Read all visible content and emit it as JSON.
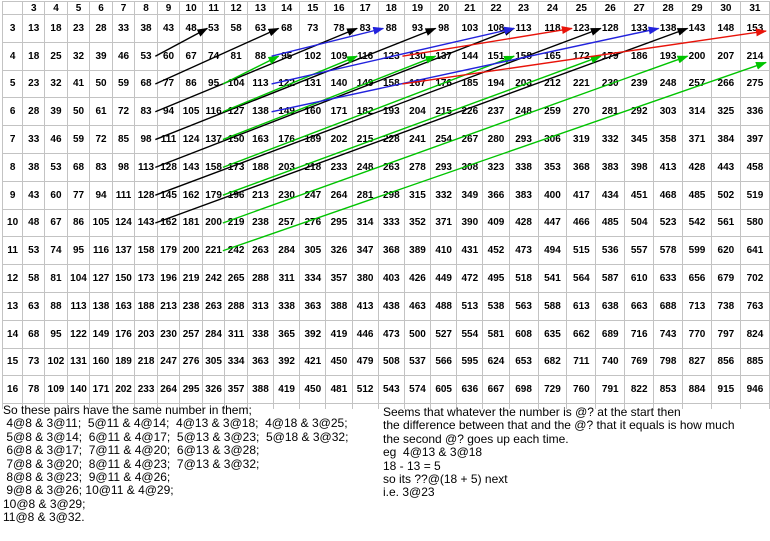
{
  "table": {
    "col_headers": [
      3,
      4,
      5,
      6,
      7,
      8,
      9,
      10,
      11,
      12,
      13,
      14,
      15,
      16,
      17,
      18,
      19,
      20,
      21,
      22,
      23,
      24,
      25,
      26,
      27,
      28,
      29,
      30,
      31
    ],
    "row_headers": [
      3,
      4,
      5,
      6,
      7,
      8,
      9,
      10,
      11,
      12,
      13,
      14,
      15,
      16
    ],
    "values": [
      [
        13,
        18,
        23,
        28,
        33,
        38,
        43,
        48,
        53,
        58,
        63,
        68,
        73,
        78,
        83,
        88,
        93,
        98,
        103,
        108,
        113,
        118,
        123,
        128,
        133,
        138,
        143,
        148,
        153
      ],
      [
        18,
        25,
        32,
        39,
        46,
        53,
        60,
        67,
        74,
        81,
        88,
        95,
        102,
        109,
        116,
        123,
        130,
        137,
        144,
        151,
        158,
        165,
        172,
        179,
        186,
        193,
        200,
        207,
        214
      ],
      [
        23,
        32,
        41,
        50,
        59,
        68,
        77,
        86,
        95,
        104,
        113,
        122,
        131,
        140,
        149,
        158,
        167,
        176,
        185,
        194,
        203,
        212,
        221,
        230,
        239,
        248,
        257,
        266,
        275
      ],
      [
        28,
        39,
        50,
        61,
        72,
        83,
        94,
        105,
        116,
        127,
        138,
        149,
        160,
        171,
        182,
        193,
        204,
        215,
        226,
        237,
        248,
        259,
        270,
        281,
        292,
        303,
        314,
        325,
        336
      ],
      [
        33,
        46,
        59,
        72,
        85,
        98,
        111,
        124,
        137,
        150,
        163,
        176,
        189,
        202,
        215,
        228,
        241,
        254,
        267,
        280,
        293,
        306,
        319,
        332,
        345,
        358,
        371,
        384,
        397
      ],
      [
        38,
        53,
        68,
        83,
        98,
        113,
        128,
        143,
        158,
        173,
        188,
        203,
        218,
        233,
        248,
        263,
        278,
        293,
        308,
        323,
        338,
        353,
        368,
        383,
        398,
        413,
        428,
        443,
        458
      ],
      [
        43,
        60,
        77,
        94,
        111,
        128,
        145,
        162,
        179,
        196,
        213,
        230,
        247,
        264,
        281,
        298,
        315,
        332,
        349,
        366,
        383,
        400,
        417,
        434,
        451,
        468,
        485,
        502,
        519
      ],
      [
        48,
        67,
        86,
        105,
        124,
        143,
        162,
        181,
        200,
        219,
        238,
        257,
        276,
        295,
        314,
        333,
        352,
        371,
        390,
        409,
        428,
        447,
        466,
        485,
        504,
        523,
        542,
        561,
        580
      ],
      [
        53,
        74,
        95,
        116,
        137,
        158,
        179,
        200,
        221,
        242,
        263,
        284,
        305,
        326,
        347,
        368,
        389,
        410,
        431,
        452,
        473,
        494,
        515,
        536,
        557,
        578,
        599,
        620,
        641
      ],
      [
        58,
        81,
        104,
        127,
        150,
        173,
        196,
        219,
        242,
        265,
        288,
        311,
        334,
        357,
        380,
        403,
        426,
        449,
        472,
        495,
        518,
        541,
        564,
        587,
        610,
        633,
        656,
        679,
        702
      ],
      [
        63,
        88,
        113,
        138,
        163,
        188,
        213,
        238,
        263,
        288,
        313,
        338,
        363,
        388,
        413,
        438,
        463,
        488,
        513,
        538,
        563,
        588,
        613,
        638,
        663,
        688,
        713,
        738,
        763
      ],
      [
        68,
        95,
        122,
        149,
        176,
        203,
        230,
        257,
        284,
        311,
        338,
        365,
        392,
        419,
        446,
        473,
        500,
        527,
        554,
        581,
        608,
        635,
        662,
        689,
        716,
        743,
        770,
        797,
        824
      ],
      [
        73,
        102,
        131,
        160,
        189,
        218,
        247,
        276,
        305,
        334,
        363,
        392,
        421,
        450,
        479,
        508,
        537,
        566,
        595,
        624,
        653,
        682,
        711,
        740,
        769,
        798,
        827,
        856,
        885
      ],
      [
        78,
        109,
        140,
        171,
        202,
        233,
        264,
        295,
        326,
        357,
        388,
        419,
        450,
        481,
        512,
        543,
        574,
        605,
        636,
        667,
        698,
        729,
        760,
        791,
        822,
        853,
        884,
        915,
        946
      ]
    ]
  },
  "arrows": [
    {
      "color": "black",
      "label": "4@8 to 3@11",
      "from": {
        "row": 4,
        "col": 8
      },
      "to": {
        "row": 3,
        "col": 11
      }
    },
    {
      "color": "black",
      "label": "5@8 to 3@14",
      "from": {
        "row": 5,
        "col": 8
      },
      "to": {
        "row": 3,
        "col": 14
      }
    },
    {
      "color": "black",
      "label": "6@8 to 3@17",
      "from": {
        "row": 6,
        "col": 8
      },
      "to": {
        "row": 3,
        "col": 17
      }
    },
    {
      "color": "black",
      "label": "7@8 to 3@20",
      "from": {
        "row": 7,
        "col": 8
      },
      "to": {
        "row": 3,
        "col": 20
      }
    },
    {
      "color": "black",
      "label": "8@8 to 3@23",
      "from": {
        "row": 8,
        "col": 8
      },
      "to": {
        "row": 3,
        "col": 23
      }
    },
    {
      "color": "black",
      "label": "9@8 to 3@26",
      "from": {
        "row": 9,
        "col": 8
      },
      "to": {
        "row": 3,
        "col": 26
      }
    },
    {
      "color": "black",
      "label": "10@8 to 3@29",
      "from": {
        "row": 10,
        "col": 8
      },
      "to": {
        "row": 3,
        "col": 29
      }
    },
    {
      "color": "green",
      "label": "5@11 to 4@14",
      "from": {
        "row": 5,
        "col": 11
      },
      "to": {
        "row": 4,
        "col": 14
      }
    },
    {
      "color": "green",
      "label": "6@11 to 4@17",
      "from": {
        "row": 6,
        "col": 11
      },
      "to": {
        "row": 4,
        "col": 17
      }
    },
    {
      "color": "green",
      "label": "7@11 to 4@20",
      "from": {
        "row": 7,
        "col": 11
      },
      "to": {
        "row": 4,
        "col": 20
      }
    },
    {
      "color": "green",
      "label": "8@11 to 4@23",
      "from": {
        "row": 8,
        "col": 11
      },
      "to": {
        "row": 4,
        "col": 23
      }
    },
    {
      "color": "green",
      "label": "9@11 to 4@26",
      "from": {
        "row": 9,
        "col": 11
      },
      "to": {
        "row": 4,
        "col": 26
      }
    },
    {
      "color": "green",
      "label": "10@11 to 4@29",
      "from": {
        "row": 10,
        "col": 11
      },
      "to": {
        "row": 4,
        "col": 29
      }
    },
    {
      "color": "green",
      "label": "11@11 off table toward 4@32",
      "from": {
        "row": 11,
        "col": 11
      },
      "to": {
        "row": 4,
        "col": 32
      }
    },
    {
      "color": "blue",
      "label": "4@13 to 3@18",
      "from": {
        "row": 4,
        "col": 13
      },
      "to": {
        "row": 3,
        "col": 18
      }
    },
    {
      "color": "blue",
      "label": "5@13 to 3@23",
      "from": {
        "row": 5,
        "col": 13
      },
      "to": {
        "row": 3,
        "col": 23
      }
    },
    {
      "color": "blue",
      "label": "6@13 to 3@28",
      "from": {
        "row": 6,
        "col": 13
      },
      "to": {
        "row": 3,
        "col": 28
      }
    },
    {
      "color": "red",
      "label": "4@18 to 3@25",
      "from": {
        "row": 4,
        "col": 18
      },
      "to": {
        "row": 3,
        "col": 25
      }
    },
    {
      "color": "red",
      "label": "5@18 off table toward 3@32",
      "from": {
        "row": 5,
        "col": 18
      },
      "to": {
        "row": 3,
        "col": 32
      }
    }
  ],
  "colors": {
    "black": "#000000",
    "green": "#00c400",
    "blue": "#2222dd",
    "red": "#e81309",
    "grid": "#c3c3c3",
    "text": "#000000"
  },
  "notes_left": {
    "lines": [
      "So these pairs have the same number in them;",
      " 4@8 & 3@11;  5@11 & 4@14;  4@13 & 3@18;  4@18 & 3@25;",
      " 5@8 & 3@14;  6@11 & 4@17;  5@13 & 3@23;  5@18 & 3@32;",
      " 6@8 & 3@17;  7@11 & 4@20;  6@13 & 3@28;",
      " 7@8 & 3@20;  8@11 & 4@23;  7@13 & 3@32;",
      " 8@8 & 3@23;  9@11 & 4@26;",
      " 9@8 & 3@26; 10@11 & 4@29;",
      "10@8 & 3@29;",
      "11@8 & 3@32."
    ]
  },
  "notes_right": {
    "lines": [
      "Seems that whatever the number is @? at the start then",
      "the difference between that and the @? that it equals is how much",
      "the second @? goes up each time.",
      "eg  4@13 & 3@18",
      "18 - 13 = 5",
      "so its ??@(18 + 5) next",
      "i.e. 3@23"
    ]
  }
}
